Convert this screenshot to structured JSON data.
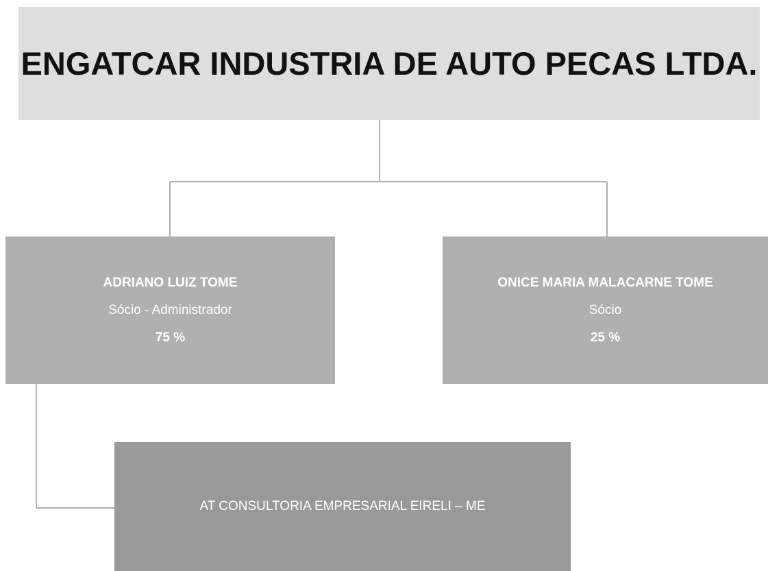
{
  "title": "ENGATCAR INDUSTRIA DE AUTO PECAS LTDA.",
  "nodes": [
    {
      "name": "ADRIANO LUIZ TOME",
      "role": "Sócio - Administrador",
      "share": "75 %"
    },
    {
      "name": "ONICE MARIA MALACARNE TOME",
      "role": "Sócio",
      "share": "25 %"
    },
    {
      "name": "AT CONSULTORIA EMPRESARIAL EIRELI – ME"
    }
  ]
}
